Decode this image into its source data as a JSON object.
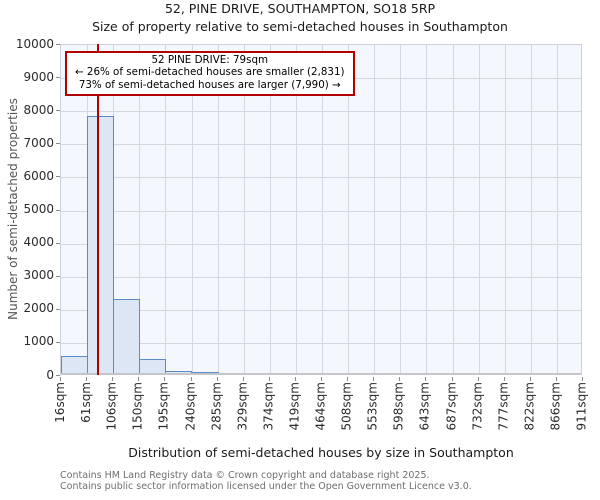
{
  "chart_data": {
    "type": "bar",
    "title": "52, PINE DRIVE, SOUTHAMPTON, SO18 5RP",
    "subtitle": "Size of property relative to semi-detached houses in Southampton",
    "xlabel": "Distribution of semi-detached houses by size in Southampton",
    "ylabel": "Number of semi-detached properties",
    "xtick_labels": [
      "16sqm",
      "61sqm",
      "106sqm",
      "150sqm",
      "195sqm",
      "240sqm",
      "285sqm",
      "329sqm",
      "374sqm",
      "419sqm",
      "464sqm",
      "508sqm",
      "553sqm",
      "598sqm",
      "643sqm",
      "687sqm",
      "732sqm",
      "777sqm",
      "822sqm",
      "866sqm",
      "911sqm"
    ],
    "bin_edges_sqm": [
      16,
      61,
      106,
      150,
      195,
      240,
      285,
      329,
      374,
      419,
      464,
      508,
      553,
      598,
      643,
      687,
      732,
      777,
      822,
      866,
      911
    ],
    "values": [
      500,
      7750,
      2250,
      420,
      75,
      25,
      0,
      0,
      0,
      0,
      0,
      0,
      0,
      0,
      0,
      0,
      0,
      0,
      0,
      0
    ],
    "ylim": [
      0,
      10000
    ],
    "ytick_step": 1000,
    "grid": true,
    "legend": "none",
    "marker": {
      "value_sqm": 79,
      "label": "52 PINE DRIVE: 79sqm"
    },
    "annotation": {
      "line1": "52 PINE DRIVE: 79sqm",
      "line2": "← 26% of semi-detached houses are smaller (2,831)",
      "line3": "73% of semi-detached houses are larger (7,990) →"
    }
  },
  "colors": {
    "bar_fill": "#dce6f4",
    "bar_stroke": "#5b8cc8",
    "marker_red": "#b00000",
    "annotation_border": "#b00000",
    "plot_background": "#f4f7fd",
    "gridline": "#d5d8e2"
  },
  "footer": {
    "line1": "Contains HM Land Registry data © Crown copyright and database right 2025.",
    "line2": "Contains public sector information licensed under the Open Government Licence v3.0."
  }
}
